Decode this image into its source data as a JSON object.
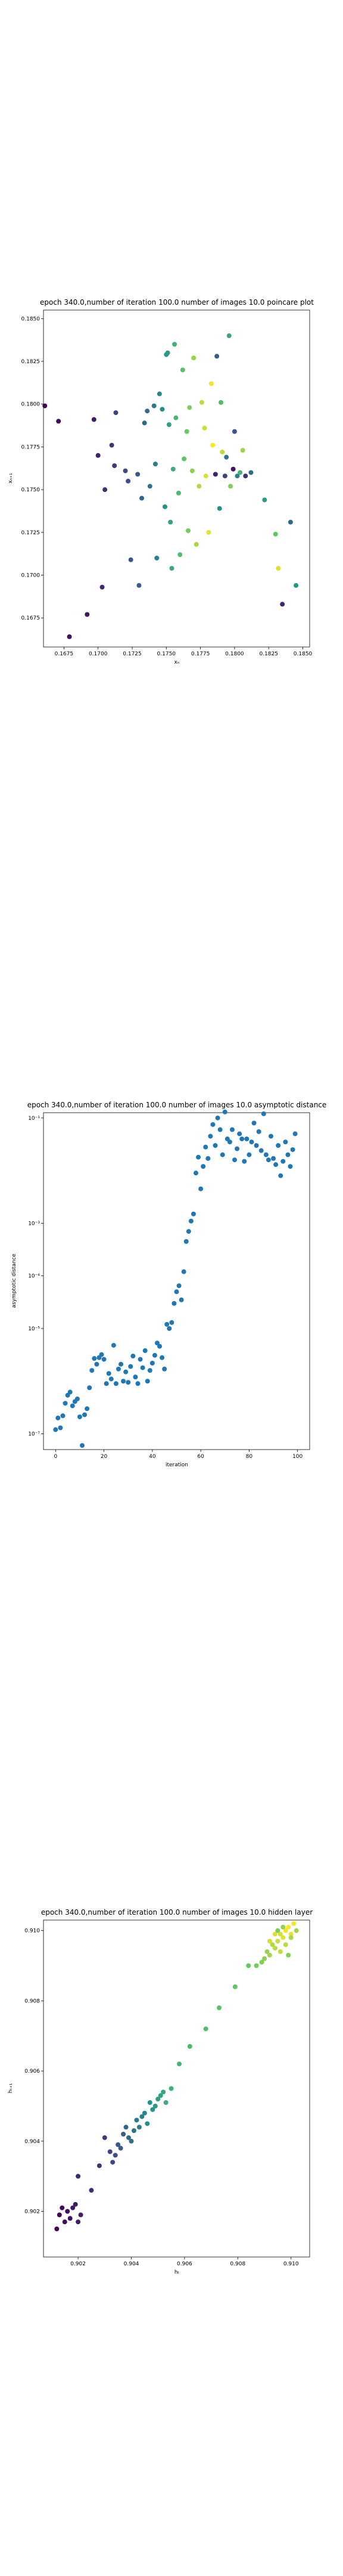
{
  "chart_data": [
    {
      "type": "scatter",
      "title": "epoch 340.0,number of iteration 100.0 number of images 10.0 poincare plot",
      "xlabel": "xₙ",
      "ylabel": "xₙ₊₁",
      "xlim": [
        0.166,
        0.1855
      ],
      "ylim": [
        0.1658,
        0.1855
      ],
      "xticks": [
        "0.1675",
        "0.1700",
        "0.1725",
        "0.1750",
        "0.1775",
        "0.1800",
        "0.1825",
        "0.1850"
      ],
      "yticks": [
        "0.1675",
        "0.1700",
        "0.1725",
        "0.1750",
        "0.1775",
        "0.1800",
        "0.1825",
        "0.1850"
      ],
      "xtick_values": [
        0.1675,
        0.17,
        0.1725,
        0.175,
        0.1775,
        0.18,
        0.1825,
        0.185
      ],
      "ytick_values": [
        0.1675,
        0.17,
        0.1725,
        0.175,
        0.1775,
        0.18,
        0.1825,
        0.185
      ],
      "colormap": [
        "#440154",
        "#3b528b",
        "#21918c",
        "#5ec962",
        "#fde725"
      ],
      "points": [
        [
          0.1661,
          0.1799,
          0.0
        ],
        [
          0.1671,
          0.179,
          0.02
        ],
        [
          0.1679,
          0.1664,
          0.04
        ],
        [
          0.1692,
          0.1677,
          0.06
        ],
        [
          0.1697,
          0.1791,
          0.08
        ],
        [
          0.17,
          0.177,
          0.1
        ],
        [
          0.1703,
          0.1693,
          0.12
        ],
        [
          0.1705,
          0.175,
          0.14
        ],
        [
          0.171,
          0.1776,
          0.16
        ],
        [
          0.1712,
          0.1764,
          0.18
        ],
        [
          0.1713,
          0.1795,
          0.2
        ],
        [
          0.172,
          0.1761,
          0.22
        ],
        [
          0.1722,
          0.1755,
          0.24
        ],
        [
          0.1724,
          0.1709,
          0.26
        ],
        [
          0.1729,
          0.1759,
          0.28
        ],
        [
          0.173,
          0.1694,
          0.3
        ],
        [
          0.1732,
          0.1745,
          0.32
        ],
        [
          0.1734,
          0.1789,
          0.34
        ],
        [
          0.1736,
          0.1796,
          0.36
        ],
        [
          0.1738,
          0.1752,
          0.38
        ],
        [
          0.1741,
          0.1799,
          0.4
        ],
        [
          0.1742,
          0.1765,
          0.42
        ],
        [
          0.1743,
          0.171,
          0.44
        ],
        [
          0.1745,
          0.1806,
          0.46
        ],
        [
          0.1747,
          0.1797,
          0.48
        ],
        [
          0.1749,
          0.174,
          0.5
        ],
        [
          0.175,
          0.1829,
          0.52
        ],
        [
          0.1751,
          0.183,
          0.54
        ],
        [
          0.1752,
          0.1788,
          0.56
        ],
        [
          0.1753,
          0.1731,
          0.58
        ],
        [
          0.1754,
          0.1704,
          0.6
        ],
        [
          0.1755,
          0.1762,
          0.62
        ],
        [
          0.1756,
          0.1835,
          0.64
        ],
        [
          0.1757,
          0.1792,
          0.66
        ],
        [
          0.1759,
          0.1748,
          0.68
        ],
        [
          0.176,
          0.1712,
          0.7
        ],
        [
          0.1762,
          0.182,
          0.72
        ],
        [
          0.1763,
          0.1768,
          0.74
        ],
        [
          0.1765,
          0.1784,
          0.76
        ],
        [
          0.1766,
          0.1726,
          0.78
        ],
        [
          0.1767,
          0.1798,
          0.8
        ],
        [
          0.1769,
          0.1761,
          0.82
        ],
        [
          0.177,
          0.1827,
          0.84
        ],
        [
          0.1772,
          0.1718,
          0.86
        ],
        [
          0.1774,
          0.1752,
          0.88
        ],
        [
          0.1776,
          0.1801,
          0.9
        ],
        [
          0.1778,
          0.1786,
          0.92
        ],
        [
          0.1779,
          0.1758,
          0.94
        ],
        [
          0.1781,
          0.1725,
          0.96
        ],
        [
          0.1783,
          0.1812,
          0.98
        ],
        [
          0.1784,
          0.1776,
          1.0
        ],
        [
          0.1786,
          0.1759,
          0.1
        ],
        [
          0.1787,
          0.1828,
          0.3
        ],
        [
          0.1789,
          0.1739,
          0.5
        ],
        [
          0.179,
          0.1801,
          0.7
        ],
        [
          0.1791,
          0.1772,
          0.9
        ],
        [
          0.1793,
          0.1758,
          0.2
        ],
        [
          0.1794,
          0.1769,
          0.4
        ],
        [
          0.1796,
          0.184,
          0.6
        ],
        [
          0.1797,
          0.1752,
          0.8
        ],
        [
          0.1799,
          0.1762,
          0.05
        ],
        [
          0.18,
          0.1784,
          0.25
        ],
        [
          0.1802,
          0.1758,
          0.45
        ],
        [
          0.1804,
          0.176,
          0.65
        ],
        [
          0.1806,
          0.1773,
          0.85
        ],
        [
          0.1808,
          0.1758,
          0.15
        ],
        [
          0.1812,
          0.176,
          0.35
        ],
        [
          0.1822,
          0.1744,
          0.55
        ],
        [
          0.183,
          0.1724,
          0.75
        ],
        [
          0.1832,
          0.1704,
          0.95
        ],
        [
          0.1835,
          0.1683,
          0.12
        ],
        [
          0.1841,
          0.1731,
          0.32
        ],
        [
          0.1845,
          0.1694,
          0.52
        ]
      ]
    },
    {
      "type": "scatter",
      "title": "epoch 340.0,number of iteration 100.0  number of images 10.0 asymptotic distance",
      "xlabel": "iteration",
      "ylabel": "asymptotic distance",
      "xlim": [
        -5,
        105
      ],
      "ylog": true,
      "ylim_exp": [
        -7.3,
        -0.9
      ],
      "xticks": [
        "0",
        "20",
        "40",
        "60",
        "80",
        "100"
      ],
      "xtick_values": [
        0,
        20,
        40,
        60,
        80,
        100
      ],
      "yticks": [
        "10⁻⁷",
        "10⁻⁵",
        "10⁻⁴",
        "10⁻³",
        "10⁻¹"
      ],
      "ytick_exps": [
        -7,
        -5,
        -4,
        -3,
        -1
      ],
      "color": "#1f77b4",
      "values": [
        [
          0,
          1.2e-07
        ],
        [
          1,
          2e-07
        ],
        [
          2,
          1.3e-07
        ],
        [
          3,
          2.2e-07
        ],
        [
          4,
          3.8e-07
        ],
        [
          5,
          5.4e-07
        ],
        [
          6,
          6.2e-07
        ],
        [
          7,
          3.4e-07
        ],
        [
          8,
          4.1e-07
        ],
        [
          9,
          4.6e-07
        ],
        [
          10,
          2.1e-07
        ],
        [
          11,
          6e-08
        ],
        [
          12,
          2.3e-07
        ],
        [
          13,
          3e-07
        ],
        [
          14,
          7.5e-07
        ],
        [
          15,
          1.6e-06
        ],
        [
          16,
          2.7e-06
        ],
        [
          17,
          2.1e-06
        ],
        [
          18,
          2.8e-06
        ],
        [
          19,
          3.2e-06
        ],
        [
          20,
          2.6e-06
        ],
        [
          21,
          9e-07
        ],
        [
          22,
          1.4e-06
        ],
        [
          23,
          1.1e-06
        ],
        [
          24,
          4.8e-06
        ],
        [
          25,
          9e-07
        ],
        [
          26,
          1.7e-06
        ],
        [
          27,
          2.1e-06
        ],
        [
          28,
          1e-06
        ],
        [
          29,
          1.5e-06
        ],
        [
          30,
          9.5e-07
        ],
        [
          31,
          1.9e-06
        ],
        [
          32,
          3e-06
        ],
        [
          33,
          1.2e-06
        ],
        [
          34,
          9e-07
        ],
        [
          35,
          2.6e-06
        ],
        [
          36,
          1.8e-06
        ],
        [
          37,
          3.8e-06
        ],
        [
          38,
          1e-06
        ],
        [
          39,
          1.6e-06
        ],
        [
          40,
          2.2e-06
        ],
        [
          41,
          3.1e-06
        ],
        [
          42,
          5.3e-06
        ],
        [
          43,
          4.6e-06
        ],
        [
          44,
          2.8e-06
        ],
        [
          45,
          1.7e-06
        ],
        [
          46,
          1.2e-05
        ],
        [
          47,
          1e-05
        ],
        [
          48,
          1.3e-05
        ],
        [
          49,
          3e-05
        ],
        [
          50,
          5e-05
        ],
        [
          51,
          6.5e-05
        ],
        [
          52,
          3.5e-05
        ],
        [
          53,
          0.00012
        ],
        [
          54,
          0.00045
        ],
        [
          55,
          0.0007
        ],
        [
          56,
          0.0011
        ],
        [
          57,
          0.0015
        ],
        [
          58,
          0.009
        ],
        [
          59,
          0.018
        ],
        [
          60,
          0.0045
        ],
        [
          61,
          0.012
        ],
        [
          62,
          0.028
        ],
        [
          63,
          0.017
        ],
        [
          64,
          0.045
        ],
        [
          65,
          0.075
        ],
        [
          66,
          0.03
        ],
        [
          67,
          0.1
        ],
        [
          68,
          0.06
        ],
        [
          69,
          0.02
        ],
        [
          70,
          0.13
        ],
        [
          71,
          0.04
        ],
        [
          72,
          0.035
        ],
        [
          73,
          0.06
        ],
        [
          74,
          0.016
        ],
        [
          75,
          0.026
        ],
        [
          76,
          0.05
        ],
        [
          77,
          0.04
        ],
        [
          78,
          0.015
        ],
        [
          79,
          0.04
        ],
        [
          80,
          0.02
        ],
        [
          81,
          0.035
        ],
        [
          82,
          0.08
        ],
        [
          83,
          0.03
        ],
        [
          84,
          0.055
        ],
        [
          85,
          0.024
        ],
        [
          86,
          0.12
        ],
        [
          87,
          0.02
        ],
        [
          88,
          0.016
        ],
        [
          89,
          0.045
        ],
        [
          90,
          0.017
        ],
        [
          91,
          0.013
        ],
        [
          92,
          0.03
        ],
        [
          93,
          0.008
        ],
        [
          94,
          0.015
        ],
        [
          95,
          0.035
        ],
        [
          96,
          0.02
        ],
        [
          97,
          0.012
        ],
        [
          98,
          0.025
        ],
        [
          99,
          0.05
        ]
      ]
    },
    {
      "type": "scatter",
      "title": "epoch 340.0,number of iteration 100.0  number of images 10.0 hidden layer",
      "xlabel": "hₜ",
      "ylabel": "hₜ₊₁",
      "xlim": [
        0.9007,
        0.9107
      ],
      "ylim": [
        0.9007,
        0.9103
      ],
      "xticks": [
        "0.902",
        "0.904",
        "0.906",
        "0.908",
        "0.910"
      ],
      "yticks": [
        "0.902",
        "0.904",
        "0.906",
        "0.908",
        "0.910"
      ],
      "xtick_values": [
        0.902,
        0.904,
        0.906,
        0.908,
        0.91
      ],
      "ytick_values": [
        0.902,
        0.904,
        0.906,
        0.908,
        0.91
      ],
      "colormap": [
        "#440154",
        "#3b528b",
        "#21918c",
        "#5ec962",
        "#fde725"
      ],
      "points": [
        [
          0.9012,
          0.9015,
          0.0
        ],
        [
          0.9013,
          0.9019,
          0.01
        ],
        [
          0.9014,
          0.9021,
          0.02
        ],
        [
          0.9015,
          0.9017,
          0.03
        ],
        [
          0.9016,
          0.902,
          0.04
        ],
        [
          0.9017,
          0.9018,
          0.05
        ],
        [
          0.9018,
          0.9021,
          0.06
        ],
        [
          0.9019,
          0.9022,
          0.07
        ],
        [
          0.902,
          0.9017,
          0.08
        ],
        [
          0.9021,
          0.9019,
          0.09
        ],
        [
          0.902,
          0.903,
          0.12
        ],
        [
          0.9025,
          0.9026,
          0.14
        ],
        [
          0.9028,
          0.9033,
          0.16
        ],
        [
          0.903,
          0.9041,
          0.18
        ],
        [
          0.9032,
          0.9037,
          0.2
        ],
        [
          0.9033,
          0.9034,
          0.22
        ],
        [
          0.9034,
          0.9036,
          0.24
        ],
        [
          0.9035,
          0.9039,
          0.26
        ],
        [
          0.9036,
          0.9038,
          0.28
        ],
        [
          0.9037,
          0.9042,
          0.3
        ],
        [
          0.9038,
          0.9044,
          0.32
        ],
        [
          0.9039,
          0.9041,
          0.34
        ],
        [
          0.904,
          0.904,
          0.36
        ],
        [
          0.9041,
          0.9043,
          0.38
        ],
        [
          0.9042,
          0.9046,
          0.4
        ],
        [
          0.9043,
          0.9044,
          0.42
        ],
        [
          0.9044,
          0.9047,
          0.44
        ],
        [
          0.9045,
          0.9048,
          0.46
        ],
        [
          0.9046,
          0.9045,
          0.48
        ],
        [
          0.9047,
          0.9051,
          0.5
        ],
        [
          0.9048,
          0.9049,
          0.52
        ],
        [
          0.9049,
          0.905,
          0.54
        ],
        [
          0.905,
          0.9052,
          0.56
        ],
        [
          0.9051,
          0.9053,
          0.58
        ],
        [
          0.9052,
          0.9054,
          0.6
        ],
        [
          0.9053,
          0.9051,
          0.62
        ],
        [
          0.9055,
          0.9055,
          0.64
        ],
        [
          0.9058,
          0.9062,
          0.66
        ],
        [
          0.9062,
          0.9067,
          0.68
        ],
        [
          0.9068,
          0.9072,
          0.7
        ],
        [
          0.9073,
          0.9078,
          0.72
        ],
        [
          0.9079,
          0.9084,
          0.74
        ],
        [
          0.9084,
          0.909,
          0.76
        ],
        [
          0.9087,
          0.909,
          0.78
        ],
        [
          0.9089,
          0.9091,
          0.8
        ],
        [
          0.909,
          0.9092,
          0.82
        ],
        [
          0.9091,
          0.9094,
          0.84
        ],
        [
          0.9092,
          0.9093,
          0.86
        ],
        [
          0.9093,
          0.9096,
          0.88
        ],
        [
          0.9094,
          0.9095,
          0.9
        ],
        [
          0.9095,
          0.9097,
          0.92
        ],
        [
          0.9096,
          0.9099,
          0.94
        ],
        [
          0.9097,
          0.9098,
          0.96
        ],
        [
          0.9098,
          0.91,
          0.98
        ],
        [
          0.9099,
          0.9101,
          1.0
        ],
        [
          0.91,
          0.9099,
          0.97
        ],
        [
          0.9101,
          0.9102,
          0.99
        ],
        [
          0.9092,
          0.9097,
          0.93
        ],
        [
          0.9094,
          0.9099,
          0.95
        ],
        [
          0.9096,
          0.9094,
          0.91
        ],
        [
          0.9098,
          0.9096,
          0.89
        ],
        [
          0.91,
          0.9098,
          0.87
        ],
        [
          0.9102,
          0.91,
          0.85
        ],
        [
          0.9097,
          0.9101,
          0.83
        ],
        [
          0.9099,
          0.9093,
          0.81
        ],
        [
          0.9095,
          0.91,
          0.79
        ]
      ]
    }
  ]
}
